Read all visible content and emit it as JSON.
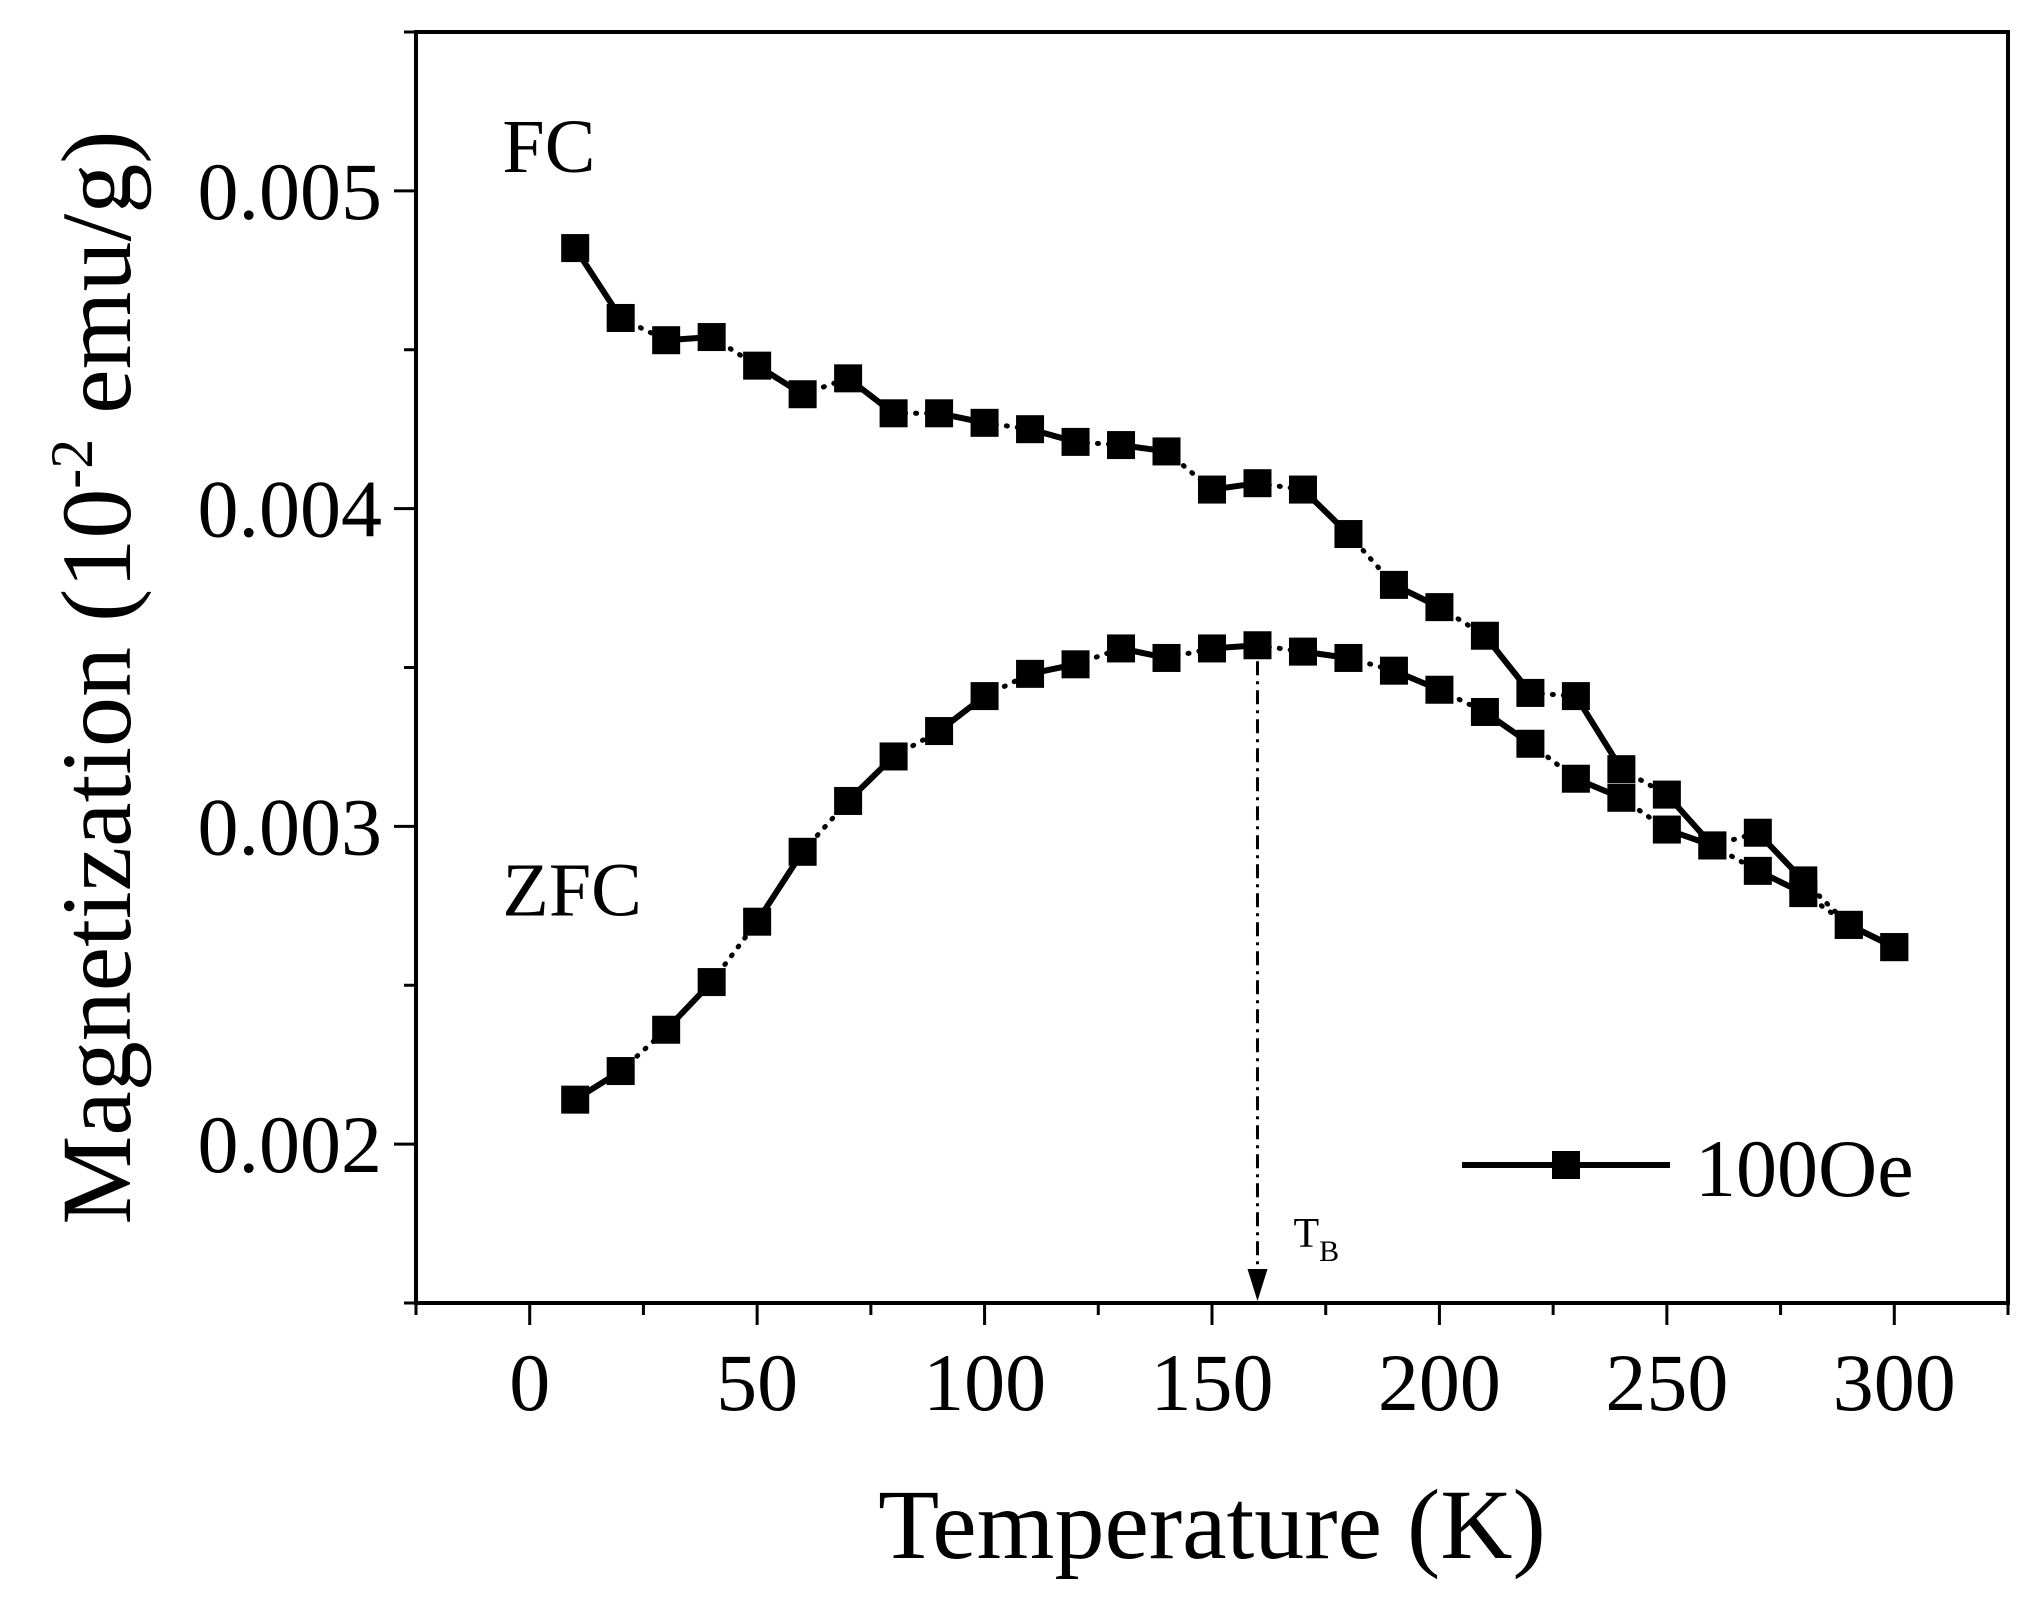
{
  "chart_data": {
    "type": "line",
    "title": "",
    "xlabel": "Temperature (K)",
    "ylabel": {
      "prefix": "Magnetization (10",
      "exponent": "-2",
      "suffix": " emu/g)"
    },
    "xlim": [
      -25,
      325
    ],
    "ylim": [
      0.0015,
      0.0055
    ],
    "x_ticks": [
      0,
      50,
      100,
      150,
      200,
      250,
      300
    ],
    "x_tick_labels": [
      "0",
      "50",
      "100",
      "150",
      "200",
      "250",
      "300"
    ],
    "y_ticks": [
      0.002,
      0.003,
      0.004,
      0.005
    ],
    "y_tick_labels": [
      "0.002",
      "0.003",
      "0.004",
      "0.005"
    ],
    "legend": {
      "position": "bottom-right",
      "label": "100Oe"
    },
    "annotations": {
      "fc_label": "FC",
      "zfc_label": "ZFC",
      "tb_label": "T",
      "tb_subscript": "B",
      "tb_temperature": 160
    },
    "series": [
      {
        "name": "FC",
        "x": [
          10,
          20,
          30,
          40,
          50,
          60,
          70,
          80,
          90,
          100,
          110,
          120,
          130,
          140,
          150,
          160,
          170,
          180,
          190,
          200,
          210,
          220,
          230,
          240,
          250,
          260,
          270,
          280,
          290,
          300
        ],
        "values": [
          0.00482,
          0.0046,
          0.00453,
          0.00454,
          0.00445,
          0.00436,
          0.00441,
          0.0043,
          0.0043,
          0.00427,
          0.00425,
          0.00421,
          0.0042,
          0.00418,
          0.00406,
          0.00408,
          0.00406,
          0.00392,
          0.00376,
          0.00369,
          0.0036,
          0.00342,
          0.00341,
          0.00318,
          0.0031,
          0.00294,
          0.00298,
          0.00283,
          0.00269,
          0.00262
        ]
      },
      {
        "name": "ZFC",
        "x": [
          10,
          20,
          30,
          40,
          50,
          60,
          70,
          80,
          90,
          100,
          110,
          120,
          130,
          140,
          150,
          160,
          170,
          180,
          190,
          200,
          210,
          220,
          230,
          240,
          250,
          260,
          270,
          280,
          290,
          300
        ],
        "values": [
          0.00214,
          0.00223,
          0.00236,
          0.00251,
          0.0027,
          0.00292,
          0.00308,
          0.00322,
          0.0033,
          0.00341,
          0.00348,
          0.00351,
          0.00356,
          0.00353,
          0.00356,
          0.00357,
          0.00355,
          0.00353,
          0.00349,
          0.00343,
          0.00336,
          0.00326,
          0.00315,
          0.00309,
          0.00299,
          0.00294,
          0.00286,
          0.00279,
          0.00269,
          0.00262
        ]
      }
    ]
  }
}
